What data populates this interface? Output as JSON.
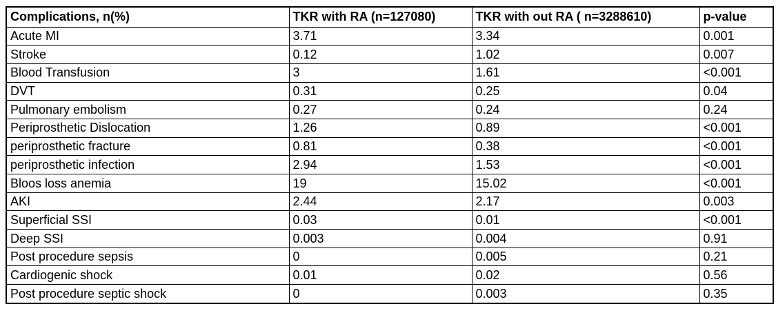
{
  "page": {
    "background_color": "#ffffff",
    "text_color": "#000000",
    "border_color": "#000000"
  },
  "chart_data": {
    "type": "table",
    "columns": [
      "Complications, n(%)",
      "TKR with RA (n=127080)",
      "TKR with out RA ( n=3288610)",
      "p-value"
    ],
    "rows": [
      [
        "Acute MI",
        "3.71",
        "3.34",
        "0.001"
      ],
      [
        "Stroke",
        "0.12",
        "1.02",
        "0.007"
      ],
      [
        "Blood Transfusion",
        "3",
        "1.61",
        "<0.001"
      ],
      [
        "DVT",
        "0.31",
        "0.25",
        "0.04"
      ],
      [
        "Pulmonary embolism",
        "0.27",
        "0.24",
        "0.24"
      ],
      [
        "Periprosthetic Dislocation",
        "1.26",
        "0.89",
        "<0.001"
      ],
      [
        "periprosthetic fracture",
        "0.81",
        "0.38",
        "<0.001"
      ],
      [
        "periprosthetic infection",
        "2.94",
        "1.53",
        "<0.001"
      ],
      [
        "Bloos loss anemia",
        "19",
        "15.02",
        "<0.001"
      ],
      [
        "AKI",
        "2.44",
        "2.17",
        "0.003"
      ],
      [
        "Superficial SSI",
        "0.03",
        "0.01",
        "<0.001"
      ],
      [
        "Deep SSI",
        "0.003",
        "0.004",
        "0.91"
      ],
      [
        "Post procedure sepsis",
        "0",
        "0.005",
        "0.21"
      ],
      [
        "Cardiogenic shock",
        "0.01",
        "0.02",
        "0.56"
      ],
      [
        "Post procedure septic shock",
        "0",
        "0.003",
        "0.35"
      ]
    ],
    "layout": {
      "grid": true,
      "header_bold": true,
      "text_align": "left"
    }
  }
}
